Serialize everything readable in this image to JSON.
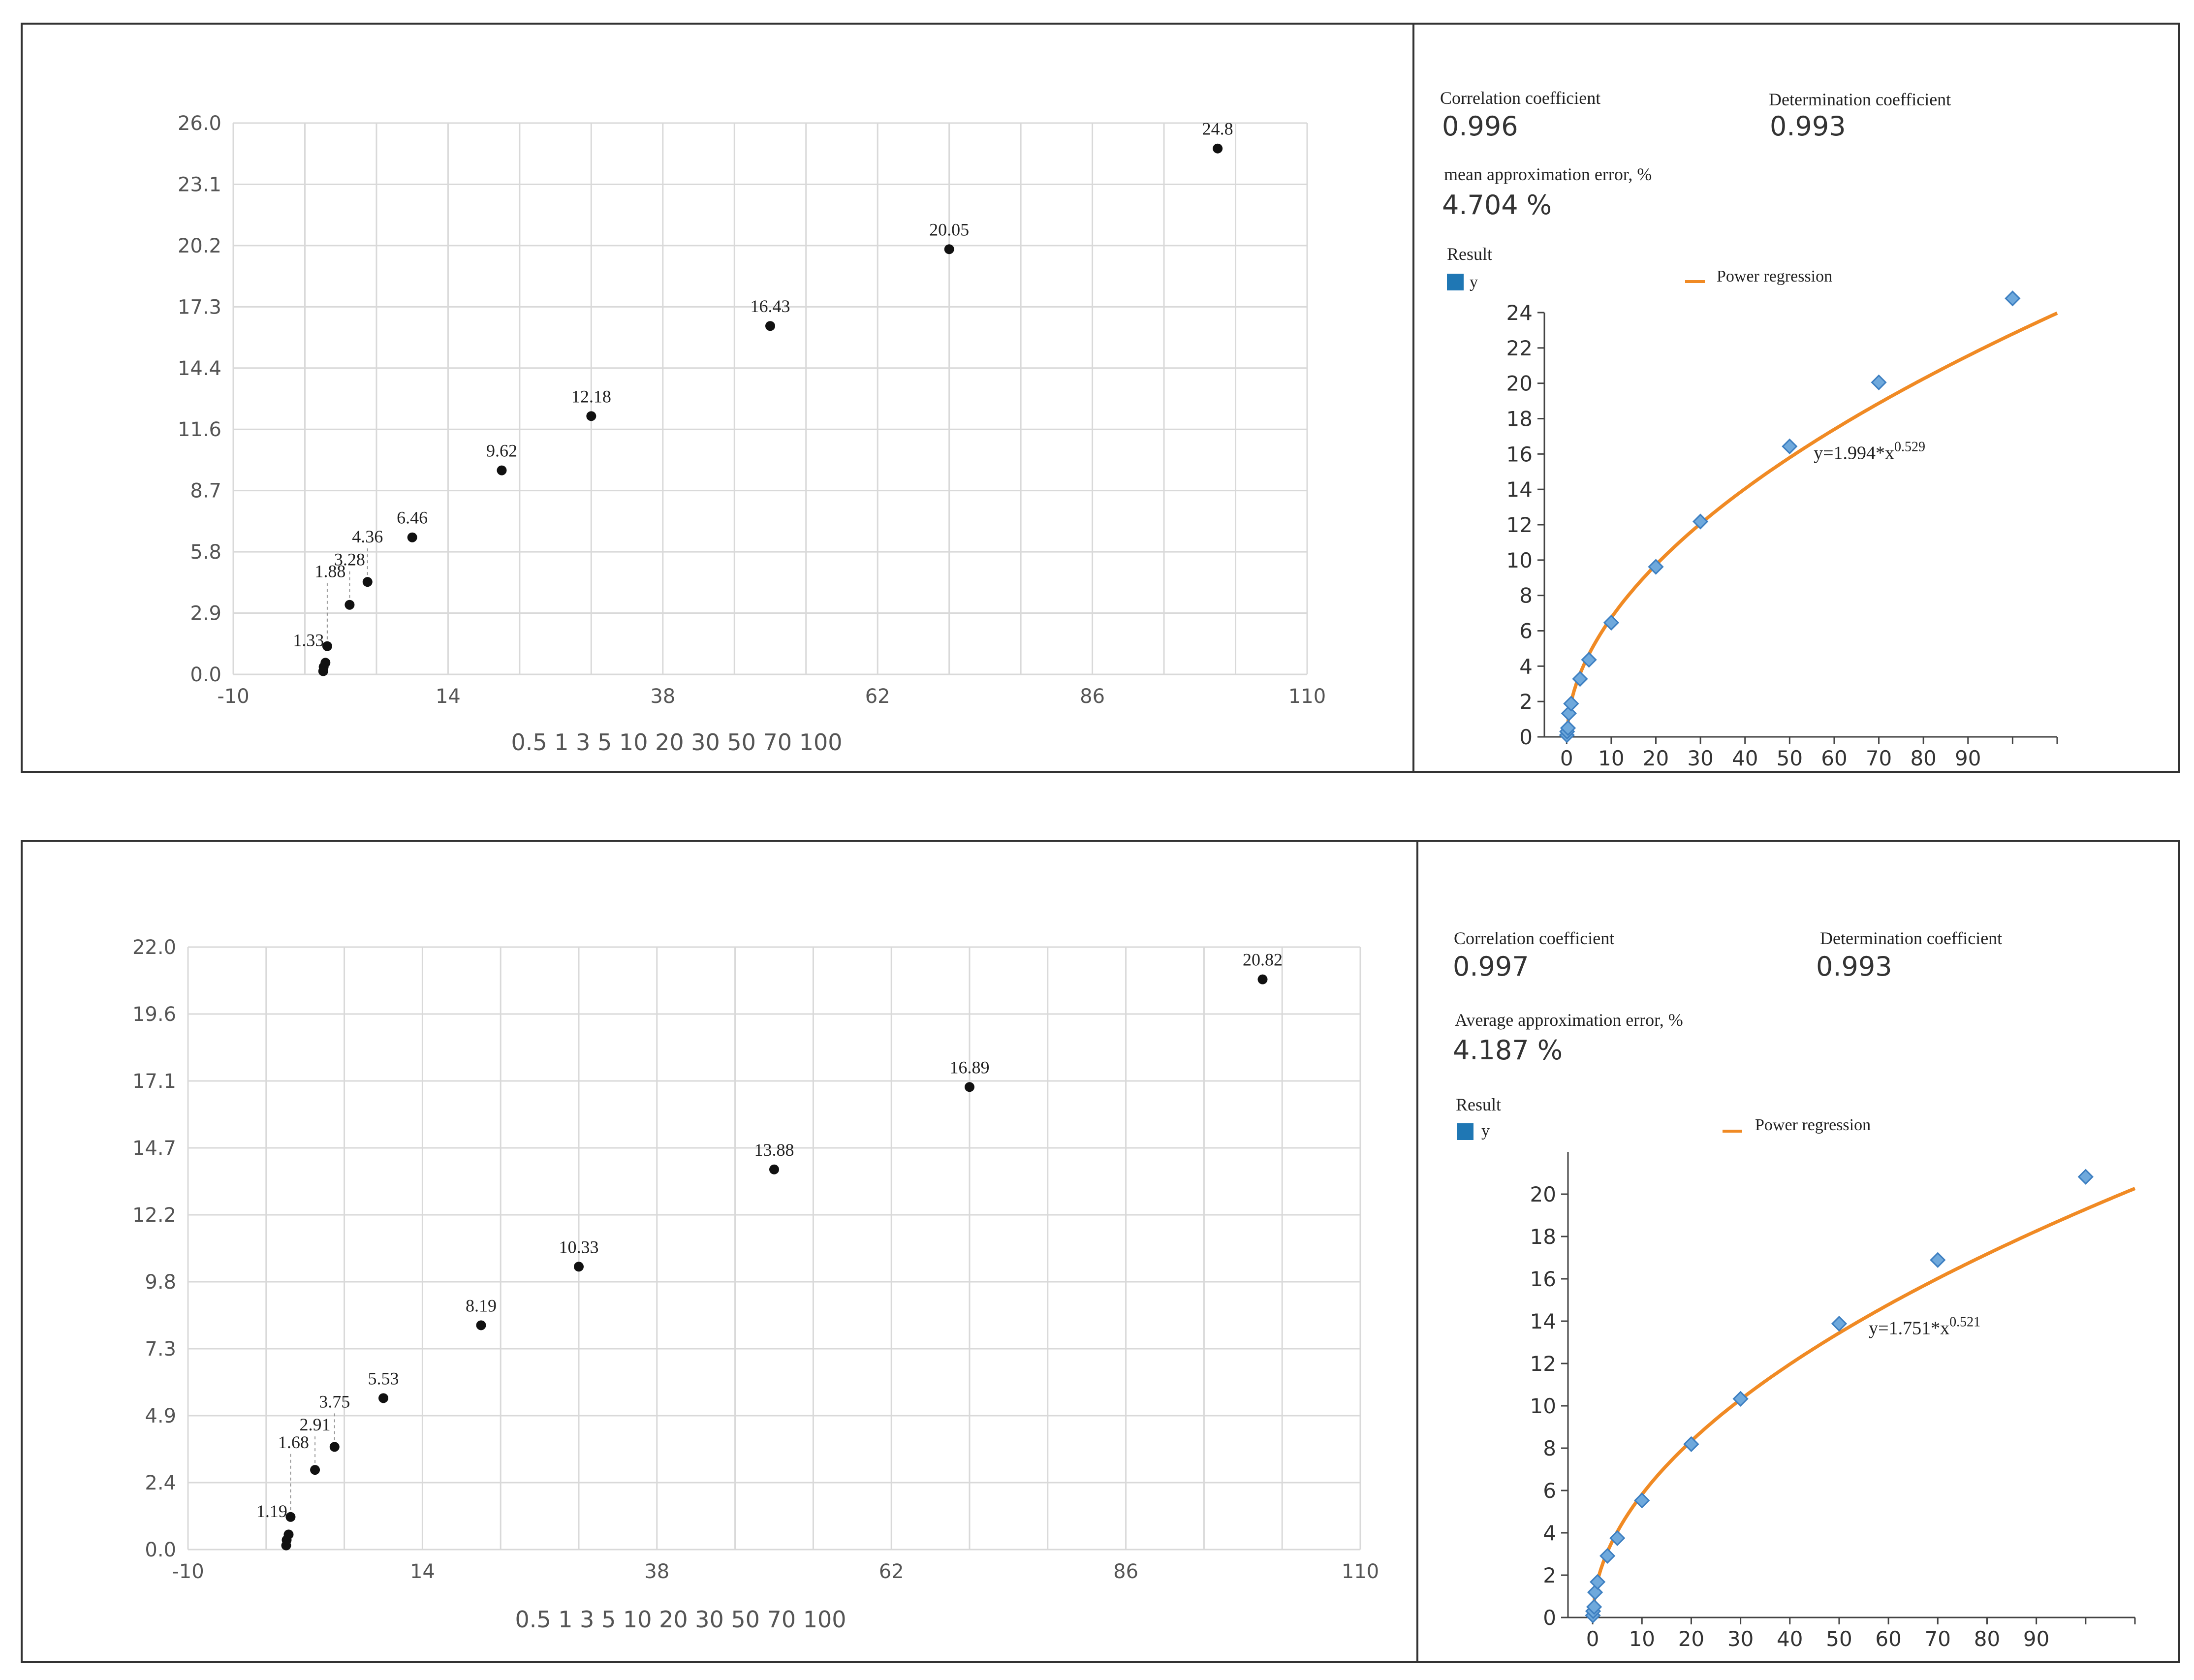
{
  "panels": [
    {
      "chart_data": {
        "type": "scatter",
        "title": "",
        "x_range": [
          -10,
          110
        ],
        "x_ticks": [
          "-10",
          "14",
          "38",
          "62",
          "86",
          "110"
        ],
        "y_range": [
          0,
          26
        ],
        "y_ticks": [
          "0.0",
          "2.9",
          "5.8",
          "8.7",
          "11.6",
          "14.4",
          "17.3",
          "20.2",
          "23.1",
          "26.0"
        ],
        "x_category_text": "0.5 1 3 5 10 20 30 50 70 100",
        "points": [
          {
            "x": 0.05,
            "y": 0.15,
            "label": ""
          },
          {
            "x": 0.1,
            "y": 0.35,
            "label": ""
          },
          {
            "x": 0.3,
            "y": 0.55,
            "label": ""
          },
          {
            "x": 0.5,
            "y": 1.33,
            "label": "1.33"
          },
          {
            "x": 3,
            "y": 3.28,
            "label": "3.28"
          },
          {
            "x": 5,
            "y": 4.36,
            "label": "4.36"
          },
          {
            "x": 10,
            "y": 6.46,
            "label": "6.46"
          },
          {
            "x": 20,
            "y": 9.62,
            "label": "9.62"
          },
          {
            "x": 30,
            "y": 12.18,
            "label": "12.18"
          },
          {
            "x": 50,
            "y": 16.43,
            "label": "16.43"
          },
          {
            "x": 70,
            "y": 20.05,
            "label": "20.05"
          },
          {
            "x": 100,
            "y": 24.8,
            "label": "24.8"
          }
        ],
        "extra_label": "1.88",
        "grid": true
      },
      "stats": {
        "correlation_label": "Correlation coefficient",
        "correlation_value": "0.996",
        "determination_label": "Determination coefficient",
        "determination_value": "0.993",
        "error_label": "mean approximation error, %",
        "error_value": "4.704 %"
      },
      "regression_chart": {
        "type": "scatter",
        "result_label": "Result",
        "legend_series": "y",
        "legend_fit": "Power regression",
        "equation_base": "y=1.994*x",
        "equation_exp": "0.529",
        "coef": 1.994,
        "power": 0.529,
        "x_ticks": [
          "0",
          "10",
          "20",
          "30",
          "40",
          "50",
          "60",
          "70",
          "80",
          "90"
        ],
        "y_ticks": [
          "0",
          "2",
          "4",
          "6",
          "8",
          "10",
          "12",
          "14",
          "16",
          "18",
          "20",
          "22",
          "24"
        ],
        "y_max": 24,
        "x_max": 110,
        "points": [
          [
            0.05,
            0.1
          ],
          [
            0.1,
            0.3
          ],
          [
            0.3,
            0.5
          ],
          [
            0.5,
            1.33
          ],
          [
            1,
            1.88
          ],
          [
            3,
            3.28
          ],
          [
            5,
            4.36
          ],
          [
            10,
            6.46
          ],
          [
            20,
            9.62
          ],
          [
            30,
            12.18
          ],
          [
            50,
            16.43
          ],
          [
            70,
            20.05
          ],
          [
            100,
            24.8
          ]
        ]
      },
      "colors": {
        "point": "#111111",
        "grid": "#d9d9d9",
        "fit": "#f08a24",
        "marker": "#6fa9dc",
        "marker_border": "#3d7fc1",
        "legend_square": "#1f77b4"
      }
    },
    {
      "chart_data": {
        "type": "scatter",
        "title": "",
        "x_range": [
          -10,
          110
        ],
        "x_ticks": [
          "-10",
          "14",
          "38",
          "62",
          "86",
          "110"
        ],
        "y_range": [
          0,
          22
        ],
        "y_ticks": [
          "0.0",
          "2.4",
          "4.9",
          "7.3",
          "9.8",
          "12.2",
          "14.7",
          "17.1",
          "19.6",
          "22.0"
        ],
        "x_category_text": "0.5 1 3 5 10 20 30 50 70 100",
        "points": [
          {
            "x": 0.05,
            "y": 0.15,
            "label": ""
          },
          {
            "x": 0.1,
            "y": 0.35,
            "label": ""
          },
          {
            "x": 0.3,
            "y": 0.55,
            "label": ""
          },
          {
            "x": 0.5,
            "y": 1.19,
            "label": "1.19"
          },
          {
            "x": 3,
            "y": 2.91,
            "label": "2.91"
          },
          {
            "x": 5,
            "y": 3.75,
            "label": "3.75"
          },
          {
            "x": 10,
            "y": 5.53,
            "label": "5.53"
          },
          {
            "x": 20,
            "y": 8.19,
            "label": "8.19"
          },
          {
            "x": 30,
            "y": 10.33,
            "label": "10.33"
          },
          {
            "x": 50,
            "y": 13.88,
            "label": "13.88"
          },
          {
            "x": 70,
            "y": 16.89,
            "label": "16.89"
          },
          {
            "x": 100,
            "y": 20.82,
            "label": "20.82"
          }
        ],
        "extra_label": "1.68",
        "grid": true
      },
      "stats": {
        "correlation_label": "Correlation coefficient",
        "correlation_value": "0.997",
        "determination_label": "Determination coefficient",
        "determination_value": "0.993",
        "error_label": "Average approximation error, %",
        "error_value": "4.187 %"
      },
      "regression_chart": {
        "type": "scatter",
        "result_label": "Result",
        "legend_series": "y",
        "legend_fit": "Power regression",
        "equation_base": "y=1.751*x",
        "equation_exp": "0.521",
        "coef": 1.751,
        "power": 0.521,
        "x_ticks": [
          "0",
          "10",
          "20",
          "30",
          "40",
          "50",
          "60",
          "70",
          "80",
          "90"
        ],
        "y_ticks": [
          "0",
          "2",
          "4",
          "6",
          "8",
          "10",
          "12",
          "14",
          "16",
          "18",
          "20"
        ],
        "y_max": 22,
        "x_max": 110,
        "points": [
          [
            0.05,
            0.1
          ],
          [
            0.1,
            0.3
          ],
          [
            0.3,
            0.5
          ],
          [
            0.5,
            1.19
          ],
          [
            1,
            1.68
          ],
          [
            3,
            2.91
          ],
          [
            5,
            3.75
          ],
          [
            10,
            5.53
          ],
          [
            20,
            8.19
          ],
          [
            30,
            10.33
          ],
          [
            50,
            13.88
          ],
          [
            70,
            16.89
          ],
          [
            100,
            20.82
          ]
        ]
      },
      "colors": {
        "point": "#111111",
        "grid": "#d9d9d9",
        "fit": "#f08a24",
        "marker": "#6fa9dc",
        "marker_border": "#3d7fc1",
        "legend_square": "#1f77b4"
      }
    }
  ]
}
